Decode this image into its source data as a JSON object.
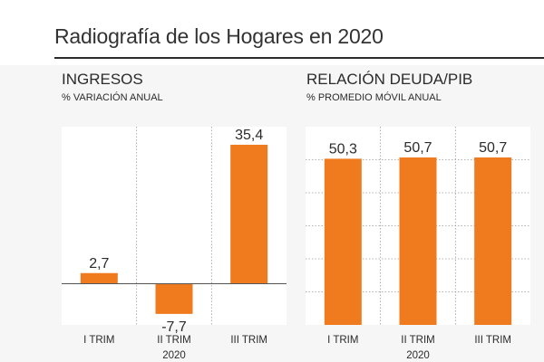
{
  "header": {
    "title": "Radiografía de los Hogares en 2020"
  },
  "chart_data": [
    {
      "type": "bar",
      "title": "INGRESOS",
      "subtitle": "% VARIACIÓN ANUAL",
      "categories": [
        "I TRIM",
        "II TRIM",
        "III TRIM"
      ],
      "x_group_label": "2020",
      "values": [
        2.7,
        -7.7,
        35.4
      ],
      "value_labels": [
        "2,7",
        "-7,7",
        "35,4"
      ],
      "ylim": [
        -10.5,
        40
      ],
      "grid": false,
      "bar_color": "#f07a1e"
    },
    {
      "type": "bar",
      "title": "RELACIÓN DEUDA/PIB",
      "subtitle": "% PROMEDIO MÓVIL ANUAL",
      "categories": [
        "I TRIM",
        "II TRIM",
        "III TRIM"
      ],
      "x_group_label": "2020",
      "values": [
        50.3,
        50.7,
        50.7
      ],
      "value_labels": [
        "50,3",
        "50,7",
        "50,7"
      ],
      "ylim": [
        0,
        60
      ],
      "grid": true,
      "bar_color": "#f07a1e"
    }
  ]
}
